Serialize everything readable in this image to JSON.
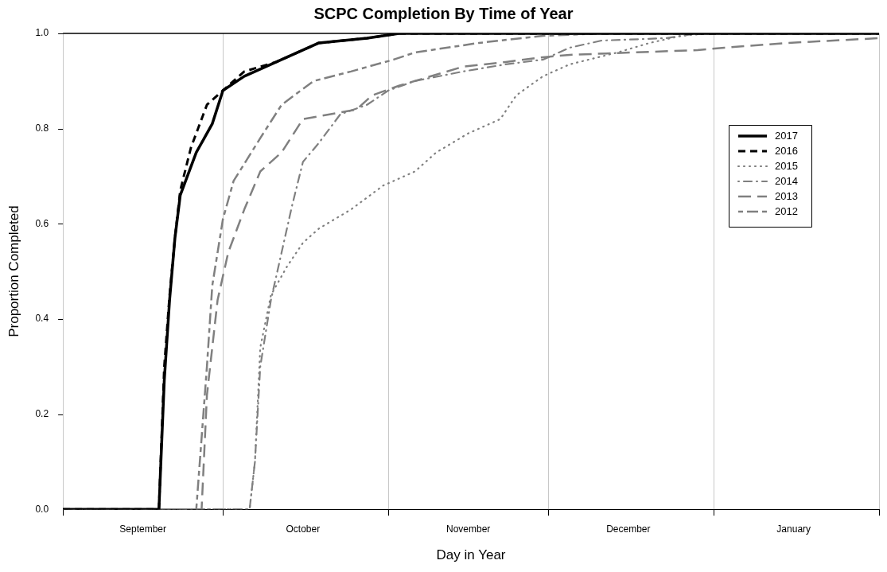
{
  "chart_data": {
    "type": "line",
    "title": "SCPC Completion By Time of Year",
    "xlabel": "Day in Year",
    "ylabel": "Proportion Completed",
    "xlim": [
      "2017-09-01",
      "2018-02-01"
    ],
    "xticks": [
      {
        "value": "2017-09-01",
        "label": null
      },
      {
        "value": "2017-09-16",
        "label": "September"
      },
      {
        "value": "2017-10-01",
        "label": null
      },
      {
        "value": "2017-10-16",
        "label": "October"
      },
      {
        "value": "2017-11-01",
        "label": null
      },
      {
        "value": "2017-11-16",
        "label": "November"
      },
      {
        "value": "2017-12-01",
        "label": null
      },
      {
        "value": "2017-12-16",
        "label": "December"
      },
      {
        "value": "2018-01-01",
        "label": null
      },
      {
        "value": "2018-01-16",
        "label": "January"
      },
      {
        "value": "2018-02-01",
        "label": null
      }
    ],
    "ylim": [
      0,
      1
    ],
    "yticks": [
      {
        "value": 0,
        "label": "0.0"
      },
      {
        "value": 0.2,
        "label": "0.2"
      },
      {
        "value": 0.4,
        "label": "0.4"
      },
      {
        "value": 0.6,
        "label": "0.6"
      },
      {
        "value": 0.8,
        "label": "0.8"
      },
      {
        "value": 1,
        "label": "1.0"
      }
    ],
    "grid": "x",
    "legend": "top right",
    "marker": "none",
    "series": [
      {
        "name": "2017",
        "color": "#000000",
        "line_style": "solid",
        "x": [
          "2017-09-01",
          "2017-09-19",
          "2017-09-20",
          "2017-09-21",
          "2017-09-22",
          "2017-09-23",
          "2017-09-26",
          "2017-09-29",
          "2017-10-01",
          "2017-10-05",
          "2017-10-11",
          "2017-10-19",
          "2017-10-28",
          "2017-11-03",
          "2018-02-01"
        ],
        "values": [
          0,
          0,
          0.27,
          0.44,
          0.57,
          0.66,
          0.75,
          0.81,
          0.88,
          0.91,
          0.94,
          0.98,
          0.99,
          1,
          1
        ]
      },
      {
        "name": "2016",
        "color": "#000000",
        "line_style": "dashed",
        "x": [
          "2017-09-01",
          "2017-09-19",
          "2017-09-20",
          "2017-09-21",
          "2017-09-22",
          "2017-09-23",
          "2017-09-25",
          "2017-09-28",
          "2017-10-01",
          "2017-10-05",
          "2017-10-11",
          "2017-10-19",
          "2017-10-28",
          "2017-11-03",
          "2018-02-01"
        ],
        "values": [
          0,
          0,
          0.3,
          0.45,
          0.57,
          0.67,
          0.76,
          0.85,
          0.88,
          0.92,
          0.94,
          0.98,
          0.99,
          1,
          1
        ]
      },
      {
        "name": "2015",
        "color": "#808080",
        "line_style": "dotted",
        "x": [
          "2017-09-01",
          "2017-10-06",
          "2017-10-07",
          "2017-10-08",
          "2017-10-10",
          "2017-10-13",
          "2017-10-16",
          "2017-10-19",
          "2017-10-25",
          "2017-10-31",
          "2017-11-06",
          "2017-11-10",
          "2017-11-16",
          "2017-11-22",
          "2017-11-25",
          "2017-11-30",
          "2017-12-05",
          "2017-12-14",
          "2017-12-20",
          "2017-12-26",
          "2017-12-31",
          "2018-02-01"
        ],
        "values": [
          0,
          0,
          0.1,
          0.34,
          0.45,
          0.51,
          0.56,
          0.59,
          0.63,
          0.68,
          0.71,
          0.75,
          0.79,
          0.82,
          0.87,
          0.91,
          0.935,
          0.96,
          0.98,
          0.995,
          1,
          1
        ]
      },
      {
        "name": "2014",
        "color": "#808080",
        "line_style": "dotdash",
        "x": [
          "2017-09-01",
          "2017-10-06",
          "2017-10-07",
          "2017-10-08",
          "2017-10-10",
          "2017-10-12",
          "2017-10-14",
          "2017-10-16",
          "2017-10-19",
          "2017-10-23",
          "2017-10-28",
          "2017-11-01",
          "2017-11-06",
          "2017-11-15",
          "2017-11-23",
          "2017-11-30",
          "2017-12-03",
          "2017-12-05",
          "2017-12-11",
          "2017-12-23",
          "2017-12-29",
          "2018-02-01"
        ],
        "values": [
          0,
          0,
          0.1,
          0.3,
          0.44,
          0.54,
          0.64,
          0.73,
          0.77,
          0.83,
          0.85,
          0.88,
          0.9,
          0.92,
          0.935,
          0.945,
          0.96,
          0.97,
          0.985,
          0.99,
          1,
          1
        ]
      },
      {
        "name": "2013",
        "color": "#808080",
        "line_style": "longdash",
        "x": [
          "2017-09-01",
          "2017-09-27",
          "2017-09-28",
          "2017-09-30",
          "2017-10-02",
          "2017-10-05",
          "2017-10-08",
          "2017-10-12",
          "2017-10-16",
          "2017-10-21",
          "2017-10-26",
          "2017-10-29",
          "2017-11-03",
          "2017-11-06",
          "2017-11-15",
          "2017-11-23",
          "2017-11-30",
          "2017-12-05",
          "2017-12-17",
          "2017-12-29",
          "2018-01-03",
          "2018-01-15",
          "2018-02-01"
        ],
        "values": [
          0,
          0,
          0.24,
          0.44,
          0.54,
          0.63,
          0.71,
          0.75,
          0.82,
          0.83,
          0.84,
          0.87,
          0.89,
          0.9,
          0.93,
          0.94,
          0.95,
          0.955,
          0.96,
          0.965,
          0.97,
          0.98,
          0.99
        ]
      },
      {
        "name": "2012",
        "color": "#808080",
        "line_style": "twodash",
        "x": [
          "2017-09-01",
          "2017-09-26",
          "2017-09-28",
          "2017-09-29",
          "2017-10-01",
          "2017-10-03",
          "2017-10-08",
          "2017-10-12",
          "2017-10-18",
          "2017-10-25",
          "2017-11-02",
          "2017-11-06",
          "2017-11-18",
          "2017-11-30",
          "2017-12-11",
          "2018-02-01"
        ],
        "values": [
          0,
          0,
          0.3,
          0.47,
          0.61,
          0.69,
          0.78,
          0.85,
          0.9,
          0.92,
          0.945,
          0.96,
          0.98,
          0.995,
          1,
          1
        ]
      }
    ]
  }
}
